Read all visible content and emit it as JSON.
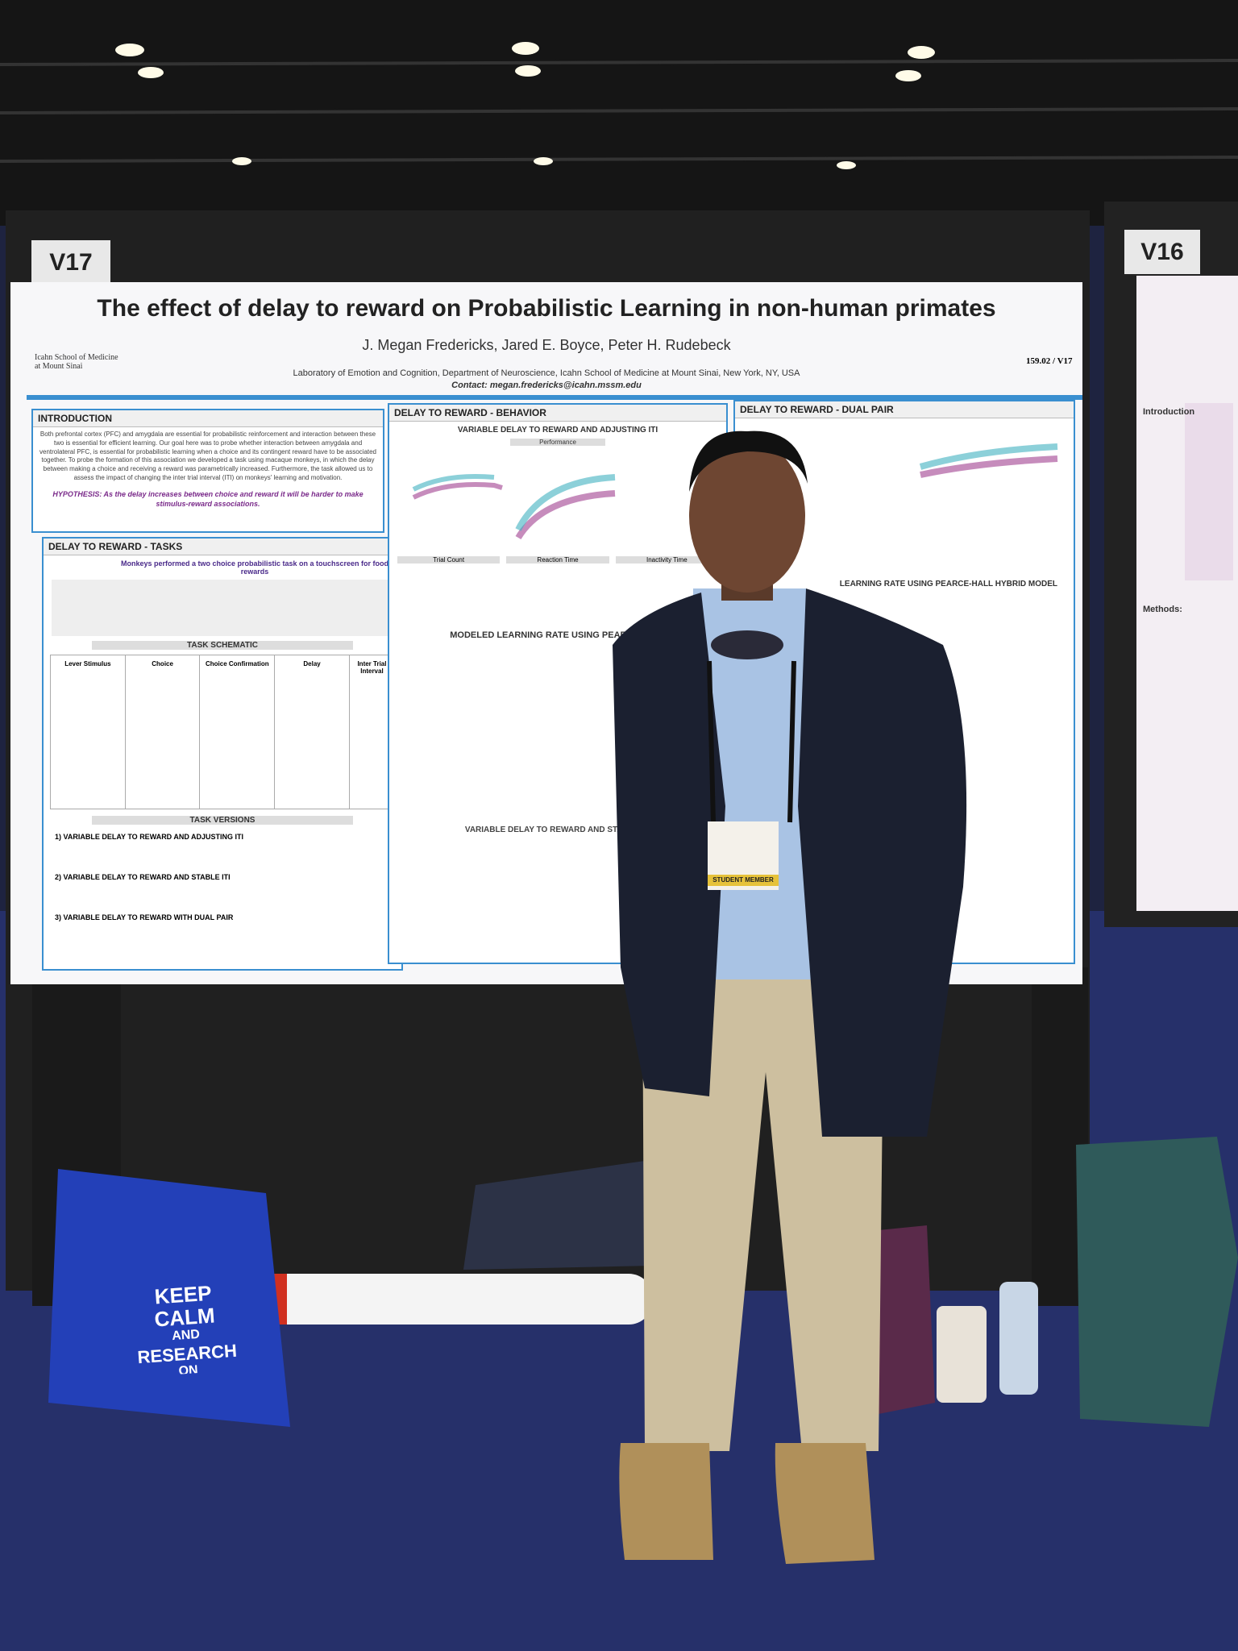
{
  "board_labels": [
    "V17",
    "V16"
  ],
  "poster": {
    "title": "The effect of delay to reward on Probabilistic Learning in non-human primates",
    "authors": "J. Megan Fredericks, Jared E. Boyce, Peter H. Rudebeck",
    "affiliation": "Laboratory of Emotion and Cognition, Department of Neuroscience, Icahn School of Medicine at Mount Sinai, New York, NY, USA",
    "contact": "Contact: megan.fredericks@icahn.mssm.edu",
    "id": "159.02 / V17",
    "logo": "Icahn School of Medicine at Mount Sinai",
    "introduction": {
      "heading": "INTRODUCTION",
      "text": "Both prefrontal cortex (PFC) and amygdala are essential for probabilistic reinforcement and interaction between these two is essential for efficient learning. Our goal here was to probe whether interaction between amygdala and ventrolateral PFC, is essential for probabilistic learning when a choice and its contingent reward have to be associated together. To probe the formation of this association we developed a task using macaque monkeys, in which the delay between making a choice and receiving a reward was parametrically increased. Furthermore, the task allowed us to assess the impact of changing the inter trial interval (ITI) on monkeys' learning and motivation.",
      "hypothesis": "HYPOTHESIS: As the delay increases between choice and reward it will be harder to make stimulus-reward associations."
    },
    "tasks": {
      "heading": "DELAY TO REWARD - TASKS",
      "subtitle": "Monkeys performed a two choice probabilistic task on a touchscreen for food rewards",
      "schematic": "TASK SCHEMATIC",
      "columns": [
        "Lever Stimulus",
        "Choice",
        "Choice Confirmation",
        "Delay",
        "Inter Trial Interval"
      ],
      "versions_heading": "TASK VERSIONS",
      "versions": [
        "1) VARIABLE DELAY TO REWARD AND ADJUSTING ITI",
        "2) VARIABLE DELAY TO REWARD AND STABLE ITI",
        "3) VARIABLE DELAY TO REWARD WITH DUAL PAIR"
      ]
    },
    "behavior": {
      "heading": "DELAY TO REWARD - BEHAVIOR",
      "sub1": "VARIABLE DELAY TO REWARD AND ADJUSTING ITI",
      "sub2": "MODELED LEARNING RATE USING PEARCE-HALL",
      "sub3": "VARIABLE DELAY TO REWARD AND STABLE ITI",
      "panels": [
        "Performance",
        "Trial Count",
        "Reaction Time",
        "Inactivity Time"
      ]
    },
    "dual": {
      "heading": "DELAY TO REWARD - DUAL PAIR",
      "sub": "LEARNING RATE USING PEARCE-HALL HYBRID MODEL"
    }
  },
  "side_poster": {
    "intro": "Introduction",
    "methods": "Methods:"
  },
  "badge": "STUDENT MEMBER",
  "bag": [
    "KEEP",
    "CALM",
    "AND",
    "RESEARCH",
    "ON"
  ]
}
